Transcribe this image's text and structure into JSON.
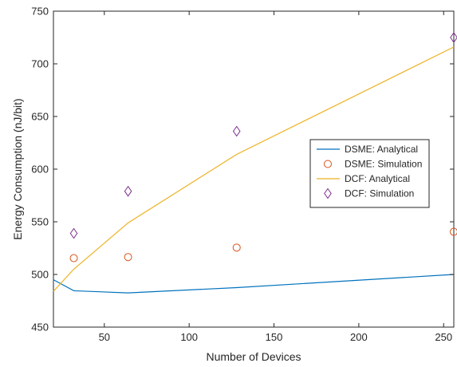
{
  "chart_data": {
    "type": "line",
    "xlabel": "Number of Devices",
    "ylabel": "Energy Consumption (nJ/bit)",
    "xlim": [
      20,
      256
    ],
    "ylim": [
      450,
      750
    ],
    "xticks": [
      "50",
      "100",
      "150",
      "200",
      "250"
    ],
    "yticks": [
      "450",
      "500",
      "550",
      "600",
      "650",
      "700",
      "750"
    ],
    "grid": false,
    "legend_position": "right",
    "series": [
      {
        "name": "DSME: Analytical",
        "style": "line",
        "color": "#0072BD",
        "x": [
          20,
          32,
          64,
          128,
          256
        ],
        "y": [
          495,
          484.5,
          482.5,
          487.5,
          500
        ]
      },
      {
        "name": "DSME: Simulation",
        "style": "marker-circle",
        "color": "#D95319",
        "x": [
          32,
          64,
          128,
          256
        ],
        "y": [
          515.5,
          516.5,
          525.5,
          540.5
        ]
      },
      {
        "name": "DCF: Analytical",
        "style": "line",
        "color": "#EDB120",
        "x": [
          20,
          32,
          64,
          128,
          256
        ],
        "y": [
          484,
          505,
          549,
          614,
          716
        ]
      },
      {
        "name": "DCF: Simulation",
        "style": "marker-diamond",
        "color": "#7E2F8E",
        "x": [
          32,
          64,
          128,
          256
        ],
        "y": [
          539,
          579,
          636,
          725
        ]
      }
    ]
  }
}
